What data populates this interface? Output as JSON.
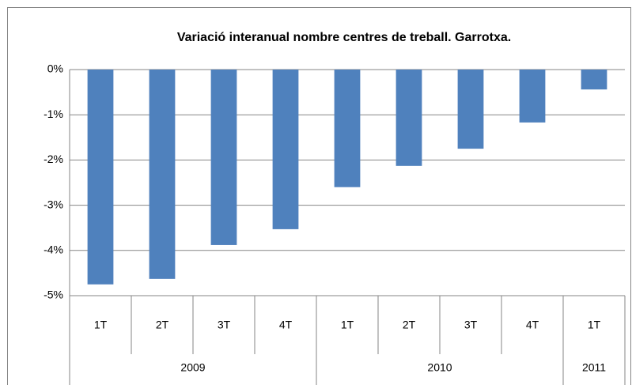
{
  "chart_data": {
    "type": "bar",
    "title": "Variació interanual nombre centres de treball. Garrotxa.",
    "categories": [
      "1T",
      "2T",
      "3T",
      "4T",
      "1T",
      "2T",
      "3T",
      "4T",
      "1T"
    ],
    "groups": [
      {
        "label": "2009",
        "span": 4
      },
      {
        "label": "2010",
        "span": 4
      },
      {
        "label": "2011",
        "span": 1
      }
    ],
    "values": [
      -4.75,
      -4.63,
      -3.88,
      -3.53,
      -2.6,
      -2.13,
      -1.75,
      -1.17,
      -0.44
    ],
    "color": "#4f81bd",
    "ylim": [
      -5,
      0
    ],
    "yticks": [
      {
        "value": 0,
        "label": "0%"
      },
      {
        "value": -1,
        "label": "-1%"
      },
      {
        "value": -2,
        "label": "-2%"
      },
      {
        "value": -3,
        "label": "-3%"
      },
      {
        "value": -4,
        "label": "-4%"
      },
      {
        "value": -5,
        "label": "-5%"
      }
    ],
    "grid": true
  }
}
